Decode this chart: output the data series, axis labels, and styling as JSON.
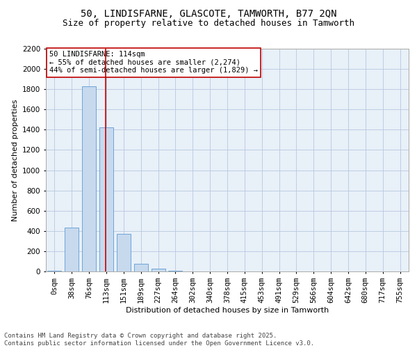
{
  "title_line1": "50, LINDISFARNE, GLASCOTE, TAMWORTH, B77 2QN",
  "title_line2": "Size of property relative to detached houses in Tamworth",
  "xlabel": "Distribution of detached houses by size in Tamworth",
  "ylabel": "Number of detached properties",
  "categories": [
    "0sqm",
    "38sqm",
    "76sqm",
    "113sqm",
    "151sqm",
    "189sqm",
    "227sqm",
    "264sqm",
    "302sqm",
    "340sqm",
    "378sqm",
    "415sqm",
    "453sqm",
    "491sqm",
    "529sqm",
    "566sqm",
    "604sqm",
    "642sqm",
    "680sqm",
    "717sqm",
    "755sqm"
  ],
  "values": [
    10,
    430,
    1830,
    1420,
    370,
    75,
    25,
    10,
    0,
    0,
    0,
    0,
    0,
    0,
    0,
    0,
    0,
    0,
    0,
    0,
    0
  ],
  "bar_color": "#c7d9ed",
  "bar_edge_color": "#5b9bd5",
  "vline_x": 2.97,
  "vline_color": "#c00000",
  "annotation_text": "50 LINDISFARNE: 114sqm\n← 55% of detached houses are smaller (2,274)\n44% of semi-detached houses are larger (1,829) →",
  "annotation_box_color": "#ffffff",
  "annotation_box_edge": "#c00000",
  "ylim": [
    0,
    2200
  ],
  "yticks": [
    0,
    200,
    400,
    600,
    800,
    1000,
    1200,
    1400,
    1600,
    1800,
    2000,
    2200
  ],
  "grid_color": "#b8c8e0",
  "background_color": "#e8f0f8",
  "footer_text": "Contains HM Land Registry data © Crown copyright and database right 2025.\nContains public sector information licensed under the Open Government Licence v3.0.",
  "title_fontsize": 10,
  "subtitle_fontsize": 9,
  "axis_label_fontsize": 8,
  "tick_fontsize": 7.5,
  "annotation_fontsize": 7.5,
  "footer_fontsize": 6.5
}
